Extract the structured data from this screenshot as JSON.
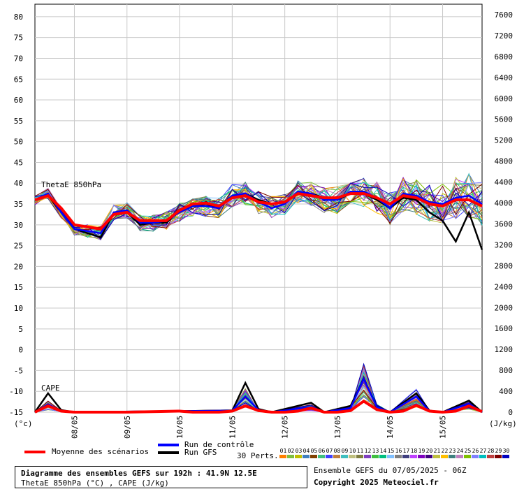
{
  "chart_data": {
    "type": "line",
    "left_axis": {
      "unit": "(°c)",
      "ticks": [
        80,
        75,
        70,
        65,
        60,
        55,
        50,
        45,
        40,
        35,
        30,
        25,
        20,
        15,
        10,
        5,
        0,
        -5,
        -10,
        -15
      ],
      "range": [
        -15,
        83
      ]
    },
    "right_axis": {
      "unit": "(J/kg)",
      "ticks": [
        7600,
        7200,
        6800,
        6400,
        6000,
        5600,
        5200,
        4800,
        4400,
        4000,
        3600,
        3200,
        2800,
        2400,
        2000,
        1600,
        1200,
        800,
        400,
        0
      ],
      "range": [
        0,
        7800
      ]
    },
    "x_labels": [
      "08/05",
      "09/05",
      "10/05",
      "11/05",
      "12/05",
      "13/05",
      "14/05",
      "15/05"
    ],
    "x_hours_start": 6,
    "x_hours_end": 198,
    "annotations": {
      "thetae": "ThetaE 850hPa",
      "cape": "CAPE"
    },
    "series": [
      {
        "name": "Moyenne des scénarios",
        "color": "#ff0000",
        "thetae": [
          [
            6,
            36
          ],
          [
            12,
            37
          ],
          [
            18,
            34
          ],
          [
            24,
            30
          ],
          [
            30,
            29.5
          ],
          [
            36,
            29
          ],
          [
            42,
            32.5
          ],
          [
            48,
            33
          ],
          [
            54,
            31
          ],
          [
            60,
            31
          ],
          [
            66,
            31
          ],
          [
            72,
            33.5
          ],
          [
            78,
            35
          ],
          [
            84,
            35.2
          ],
          [
            90,
            34.5
          ],
          [
            96,
            36.5
          ],
          [
            102,
            37
          ],
          [
            108,
            35.5
          ],
          [
            114,
            35
          ],
          [
            120,
            35.5
          ],
          [
            126,
            37.5
          ],
          [
            132,
            37
          ],
          [
            138,
            36.5
          ],
          [
            144,
            36.5
          ],
          [
            150,
            37.5
          ],
          [
            156,
            37.5
          ],
          [
            162,
            36.5
          ],
          [
            168,
            35
          ],
          [
            174,
            37
          ],
          [
            180,
            36.5
          ],
          [
            186,
            35
          ],
          [
            192,
            34.5
          ],
          [
            198,
            36
          ],
          [
            204,
            36
          ],
          [
            210,
            34.5
          ]
        ],
        "cape": [
          [
            6,
            0
          ],
          [
            12,
            120
          ],
          [
            18,
            20
          ],
          [
            24,
            0
          ],
          [
            48,
            0
          ],
          [
            72,
            20
          ],
          [
            78,
            0
          ],
          [
            90,
            0
          ],
          [
            96,
            20
          ],
          [
            102,
            120
          ],
          [
            108,
            30
          ],
          [
            114,
            0
          ],
          [
            120,
            0
          ],
          [
            126,
            20
          ],
          [
            132,
            80
          ],
          [
            138,
            0
          ],
          [
            144,
            0
          ],
          [
            150,
            30
          ],
          [
            156,
            210
          ],
          [
            162,
            50
          ],
          [
            168,
            0
          ],
          [
            174,
            20
          ],
          [
            180,
            130
          ],
          [
            186,
            20
          ],
          [
            192,
            0
          ],
          [
            198,
            20
          ],
          [
            204,
            120
          ],
          [
            210,
            10
          ]
        ]
      },
      {
        "name": "Run de contrôle",
        "color": "#0000ff",
        "thetae": [
          [
            6,
            36
          ],
          [
            12,
            37.5
          ],
          [
            18,
            33
          ],
          [
            24,
            29
          ],
          [
            30,
            28.5
          ],
          [
            36,
            28
          ],
          [
            42,
            33
          ],
          [
            48,
            33.5
          ],
          [
            54,
            30.5
          ],
          [
            60,
            30.5
          ],
          [
            66,
            31
          ],
          [
            72,
            33
          ],
          [
            78,
            34.5
          ],
          [
            84,
            34.5
          ],
          [
            90,
            34
          ],
          [
            96,
            37
          ],
          [
            102,
            37.5
          ],
          [
            108,
            35.5
          ],
          [
            114,
            34
          ],
          [
            120,
            35
          ],
          [
            126,
            38
          ],
          [
            132,
            37.5
          ],
          [
            138,
            36
          ],
          [
            144,
            36
          ],
          [
            150,
            38
          ],
          [
            156,
            38
          ],
          [
            162,
            36.5
          ],
          [
            168,
            34
          ],
          [
            174,
            37.5
          ],
          [
            180,
            37
          ],
          [
            186,
            35.5
          ],
          [
            192,
            35
          ],
          [
            198,
            36.5
          ],
          [
            204,
            37
          ],
          [
            210,
            35
          ]
        ],
        "cape": [
          [
            6,
            0
          ],
          [
            12,
            150
          ],
          [
            18,
            20
          ],
          [
            24,
            0
          ],
          [
            96,
            30
          ],
          [
            102,
            300
          ],
          [
            108,
            40
          ],
          [
            114,
            0
          ],
          [
            132,
            100
          ],
          [
            138,
            0
          ],
          [
            150,
            80
          ],
          [
            156,
            640
          ],
          [
            162,
            100
          ],
          [
            168,
            0
          ],
          [
            180,
            300
          ],
          [
            186,
            20
          ],
          [
            192,
            0
          ],
          [
            204,
            160
          ],
          [
            210,
            0
          ]
        ]
      },
      {
        "name": "Run GFS",
        "color": "#000000",
        "thetae": [
          [
            6,
            36
          ],
          [
            12,
            37
          ],
          [
            18,
            33
          ],
          [
            24,
            29
          ],
          [
            30,
            28
          ],
          [
            36,
            27
          ],
          [
            42,
            33
          ],
          [
            48,
            33
          ],
          [
            54,
            30
          ],
          [
            60,
            30.5
          ],
          [
            66,
            30.5
          ],
          [
            72,
            33.5
          ],
          [
            78,
            34.5
          ],
          [
            84,
            35
          ],
          [
            90,
            34
          ],
          [
            96,
            37
          ],
          [
            102,
            37.5
          ],
          [
            108,
            36
          ],
          [
            114,
            35
          ],
          [
            120,
            35.5
          ],
          [
            126,
            37.5
          ],
          [
            132,
            37.5
          ],
          [
            138,
            36.5
          ],
          [
            144,
            36
          ],
          [
            150,
            37.5
          ],
          [
            156,
            37.5
          ],
          [
            162,
            36
          ],
          [
            168,
            34
          ],
          [
            174,
            36.5
          ],
          [
            180,
            36
          ],
          [
            186,
            33
          ],
          [
            192,
            31
          ],
          [
            198,
            26
          ],
          [
            204,
            33
          ],
          [
            210,
            24
          ]
        ],
        "cape": [
          [
            6,
            0
          ],
          [
            12,
            360
          ],
          [
            18,
            40
          ],
          [
            24,
            0
          ],
          [
            96,
            30
          ],
          [
            102,
            560
          ],
          [
            108,
            60
          ],
          [
            114,
            0
          ],
          [
            132,
            180
          ],
          [
            138,
            0
          ],
          [
            150,
            120
          ],
          [
            156,
            640
          ],
          [
            162,
            110
          ],
          [
            168,
            0
          ],
          [
            180,
            360
          ],
          [
            186,
            30
          ],
          [
            192,
            0
          ],
          [
            204,
            220
          ],
          [
            210,
            0
          ]
        ]
      }
    ]
  },
  "legend": {
    "mean": "Moyenne des scénarios",
    "control": "Run de contrôle",
    "gfs": "Run GFS",
    "perts": "30 Perts."
  },
  "swatch_labels": [
    "01",
    "02",
    "03",
    "04",
    "05",
    "06",
    "07",
    "08",
    "09",
    "10",
    "11",
    "12",
    "13",
    "14",
    "15",
    "16",
    "17",
    "18",
    "19",
    "20",
    "21",
    "22",
    "23",
    "24",
    "25",
    "26",
    "27",
    "28",
    "29",
    "30"
  ],
  "swatch_colors": [
    "#ff7f00",
    "#7fbf3f",
    "#bfbf00",
    "#3f7fbf",
    "#7f3f00",
    "#3fbf7f",
    "#3f3fff",
    "#bf7f3f",
    "#3fbfbf",
    "#bfbf7f",
    "#7f7f3f",
    "#7f3fbf",
    "#3fbf3f",
    "#00bf7f",
    "#7fbfff",
    "#7f7f7f",
    "#3f3f7f",
    "#bf3fff",
    "#7f00bf",
    "#3f007f",
    "#bfbf3f",
    "#ffbf00",
    "#3f7f7f",
    "#bf7fbf",
    "#7fbf00",
    "#7f7fff",
    "#00bfbf",
    "#bf3f3f",
    "#7f0000",
    "#0000bf"
  ],
  "info": {
    "title": "Diagramme des ensembles GEFS sur 192h : 41.9N 12.5E",
    "subtitle": "ThetaE 850hPa (°C) , CAPE (J/kg)",
    "ensemble": "Ensemble GEFS du 07/05/2025 - 06Z",
    "copyright": "Copyright 2025 Meteociel.fr"
  }
}
